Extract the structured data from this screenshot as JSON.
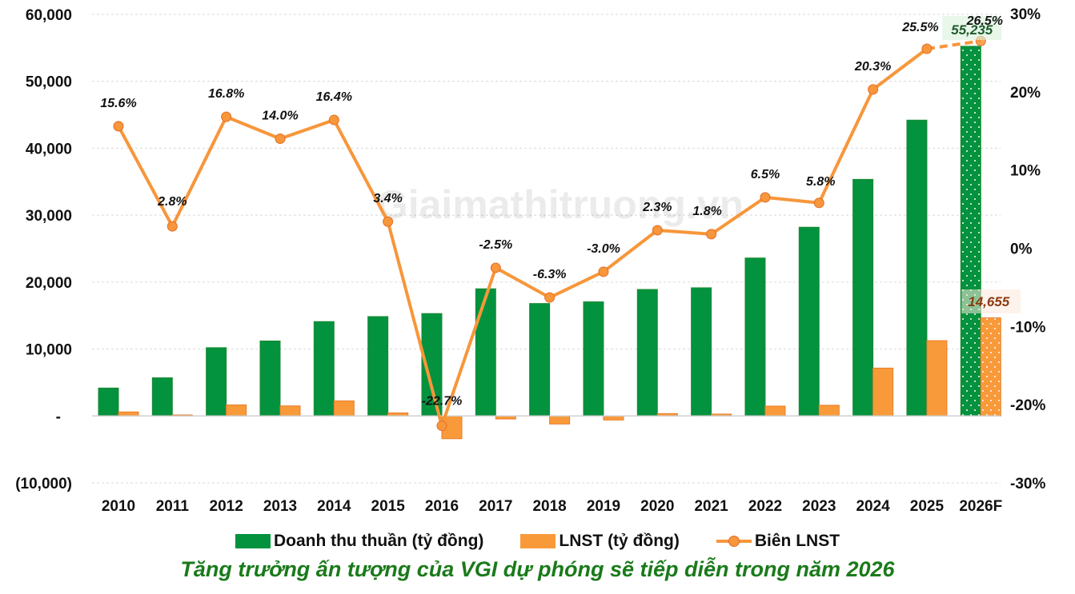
{
  "chart_data": {
    "type": "bar",
    "title": "Tăng trưởng ấn tượng của VGI dự phóng sẽ tiếp diễn trong năm 2026",
    "categories": [
      "2010",
      "2011",
      "2012",
      "2013",
      "2014",
      "2015",
      "2016",
      "2017",
      "2018",
      "2019",
      "2020",
      "2021",
      "2022",
      "2023",
      "2024",
      "2025",
      "2026F"
    ],
    "series": [
      {
        "name": "Doanh thu thuần (tỷ đồng)",
        "type": "bar",
        "axis": "left",
        "color": "#03923e",
        "values": [
          4170,
          5700,
          10200,
          11200,
          14100,
          14850,
          15300,
          19000,
          16800,
          17050,
          18900,
          19150,
          23600,
          28200,
          35350,
          44200,
          55235
        ]
      },
      {
        "name": "LNST (tỷ đồng)",
        "type": "bar",
        "axis": "left",
        "color": "#f99a3a",
        "values": [
          600,
          150,
          1650,
          1500,
          2250,
          450,
          -3400,
          -450,
          -1200,
          -600,
          350,
          280,
          1470,
          1600,
          7150,
          11250,
          14655
        ]
      },
      {
        "name": "Biên LNST",
        "type": "line",
        "axis": "right",
        "color": "#f7963a",
        "values": [
          15.6,
          2.8,
          16.8,
          14.0,
          16.4,
          3.4,
          -22.7,
          -2.5,
          -6.3,
          -3.0,
          2.3,
          1.8,
          6.5,
          5.8,
          20.3,
          25.5,
          26.5
        ],
        "labels": [
          "15.6%",
          "2.8%",
          "16.8%",
          "14.0%",
          "16.4%",
          "3.4%",
          "-22.7%",
          "-2.5%",
          "-6.3%",
          "-3.0%",
          "2.3%",
          "1.8%",
          "6.5%",
          "5.8%",
          "20.3%",
          "25.5%",
          "26.5%"
        ]
      }
    ],
    "forecast_category": "2026F",
    "forecast_labels": {
      "revenue": "55,235",
      "profit": "14,655"
    },
    "left_axis": {
      "ylim": [
        -10000,
        60000
      ],
      "ticks": [
        60000,
        50000,
        40000,
        30000,
        20000,
        10000,
        0,
        -10000
      ],
      "tick_labels": [
        "60,000",
        "50,000",
        "40,000",
        "30,000",
        "20,000",
        "10,000",
        "-",
        "(10,000)"
      ]
    },
    "right_axis": {
      "ylim": [
        -30,
        30
      ],
      "ticks": [
        30,
        20,
        10,
        0,
        -10,
        -20,
        -30
      ],
      "tick_labels": [
        "30%",
        "20%",
        "10%",
        "0%",
        "-10%",
        "-20%",
        "-30%"
      ]
    },
    "xlabel": "",
    "ylabel": "",
    "grid": true,
    "legend_position": "bottom",
    "watermark": "Giaimathitruong.vn"
  },
  "legend": {
    "revenue": "Doanh thu thuần (tỷ đồng)",
    "profit": "LNST (tỷ đồng)",
    "margin": "Biên LNST"
  },
  "caption": "Tăng trưởng ấn tượng của VGI dự phóng sẽ tiếp diễn trong năm 2026"
}
